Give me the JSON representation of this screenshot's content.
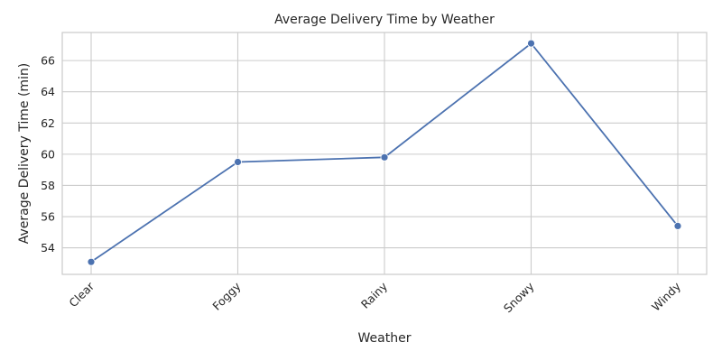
{
  "chart_data": {
    "type": "line",
    "title": "Average Delivery Time by Weather",
    "xlabel": "Weather",
    "ylabel": "Average Delivery Time (min)",
    "categories": [
      "Clear",
      "Foggy",
      "Rainy",
      "Snowy",
      "Windy"
    ],
    "values": [
      53.1,
      59.5,
      59.8,
      67.1,
      55.4
    ],
    "yticks": [
      54,
      56,
      58,
      60,
      62,
      64,
      66
    ],
    "ylim": [
      52.3,
      67.8
    ],
    "grid": true,
    "marker": "circle",
    "color": "#4c72b0"
  }
}
